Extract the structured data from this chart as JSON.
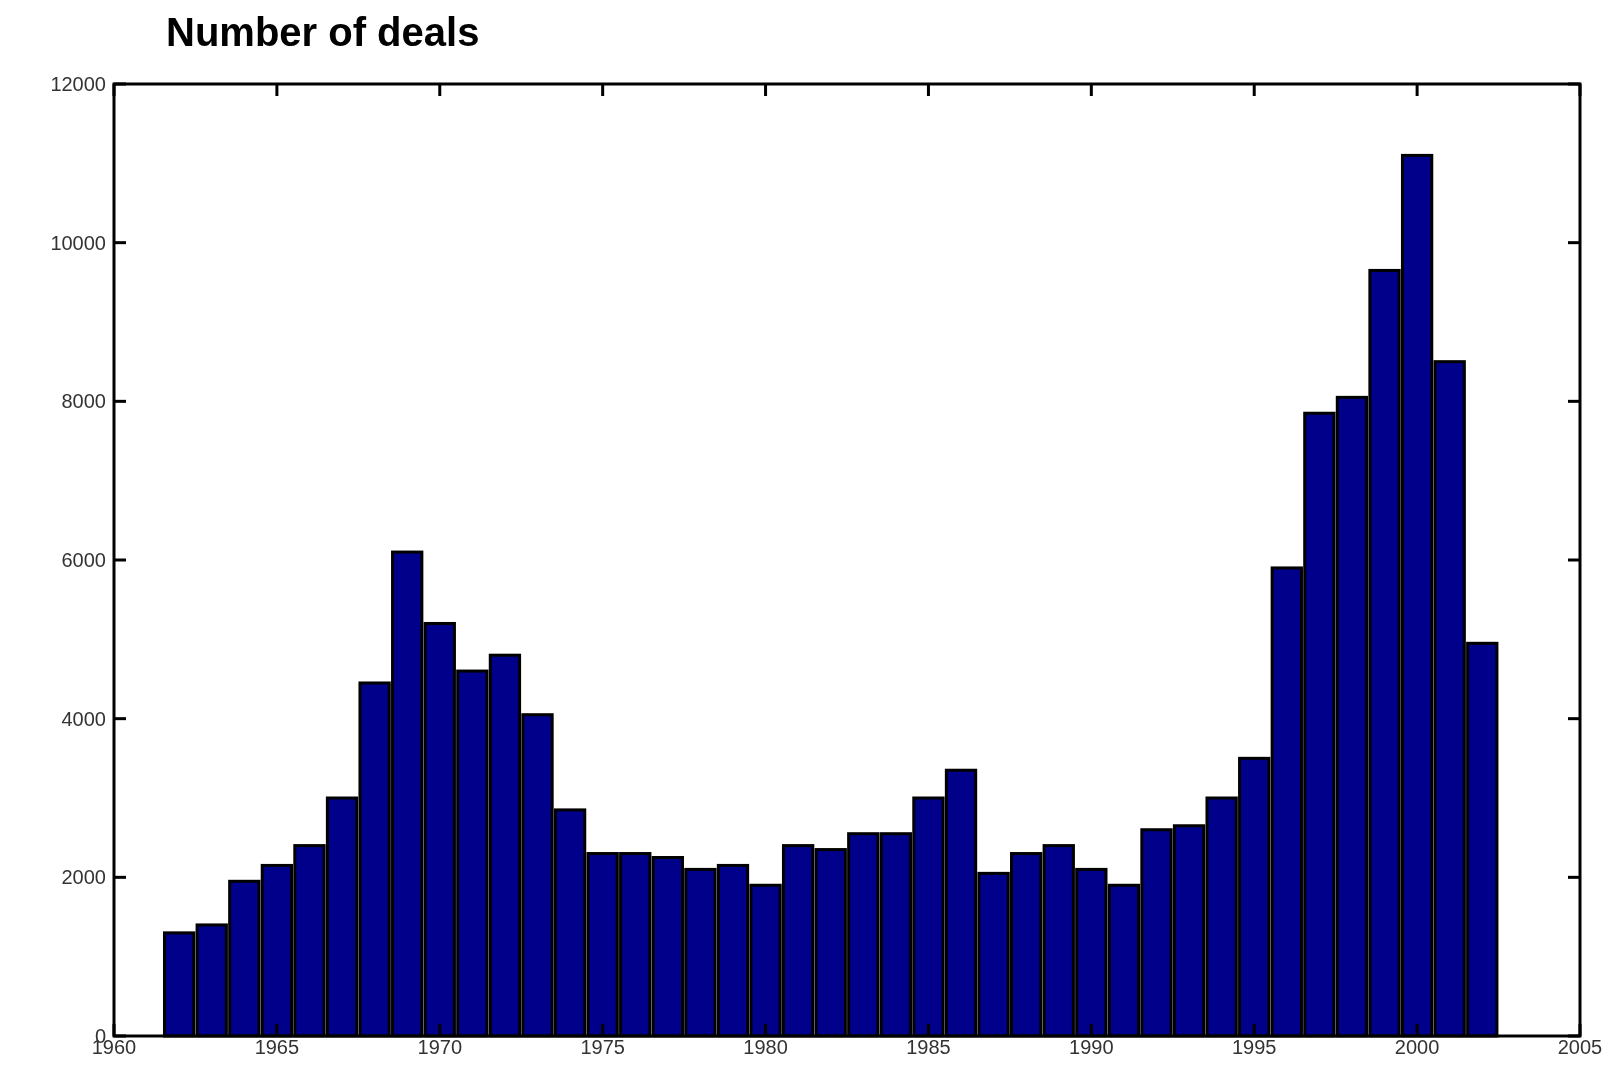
{
  "chart_data": {
    "type": "bar",
    "title": "Number of deals",
    "x": [
      1962,
      1963,
      1964,
      1965,
      1966,
      1967,
      1968,
      1969,
      1970,
      1971,
      1972,
      1973,
      1974,
      1975,
      1976,
      1977,
      1978,
      1979,
      1980,
      1981,
      1982,
      1983,
      1984,
      1985,
      1986,
      1987,
      1988,
      1989,
      1990,
      1991,
      1992,
      1993,
      1994,
      1995,
      1996,
      1997,
      1998,
      1999,
      2000,
      2001,
      2002
    ],
    "values": [
      1300,
      1400,
      1950,
      2150,
      2400,
      3000,
      4450,
      6100,
      5200,
      4600,
      4800,
      4050,
      2850,
      2300,
      2300,
      2250,
      2100,
      2150,
      1900,
      2400,
      2350,
      2550,
      2550,
      3000,
      3350,
      2050,
      2300,
      2400,
      2100,
      1900,
      2600,
      2650,
      3000,
      3500,
      5900,
      7850,
      8050,
      9650,
      11100,
      8500,
      4950
    ],
    "color": "#00008b",
    "xlim": [
      1960,
      2005
    ],
    "xticks": [
      1960,
      1965,
      1970,
      1975,
      1980,
      1985,
      1990,
      1995,
      2000,
      2005
    ],
    "ylim": [
      0,
      12000
    ],
    "yticks": [
      0,
      2000,
      4000,
      6000,
      8000,
      10000,
      12000
    ],
    "grid": false
  }
}
